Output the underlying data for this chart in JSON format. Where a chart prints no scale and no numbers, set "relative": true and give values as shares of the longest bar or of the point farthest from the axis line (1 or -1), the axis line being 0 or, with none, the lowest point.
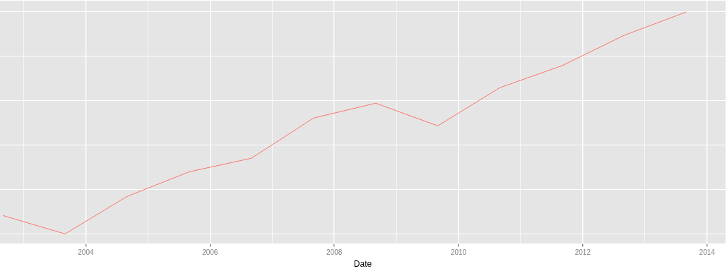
{
  "chart_data": {
    "type": "line",
    "xlabel": "Date",
    "relative": true,
    "x": [
      "2002-09",
      "2003-09",
      "2004-09",
      "2005-09",
      "2006-09",
      "2007-09",
      "2008-09",
      "2009-09",
      "2010-09",
      "2011-09",
      "2012-09",
      "2013-09"
    ],
    "series": [
      {
        "color": "#f8766d",
        "values": [
          0.083,
          0,
          0.169,
          0.28,
          0.341,
          0.522,
          0.589,
          0.487,
          0.659,
          0.758,
          0.895,
          1
        ]
      }
    ],
    "xlim": [
      "2002-08-15",
      "2014-04-20"
    ],
    "xticks": [
      {
        "value": "2003",
        "label": null
      },
      "2004",
      {
        "value": "2005",
        "label": null
      },
      "2006",
      {
        "value": "2007",
        "label": null
      },
      "2008",
      {
        "value": "2009",
        "label": null
      },
      "2010",
      {
        "value": "2011",
        "label": null
      },
      "2012",
      {
        "value": "2013",
        "label": null
      },
      "2014"
    ],
    "grid": true,
    "legend": false,
    "marker": "none",
    "line_style": "solid"
  }
}
